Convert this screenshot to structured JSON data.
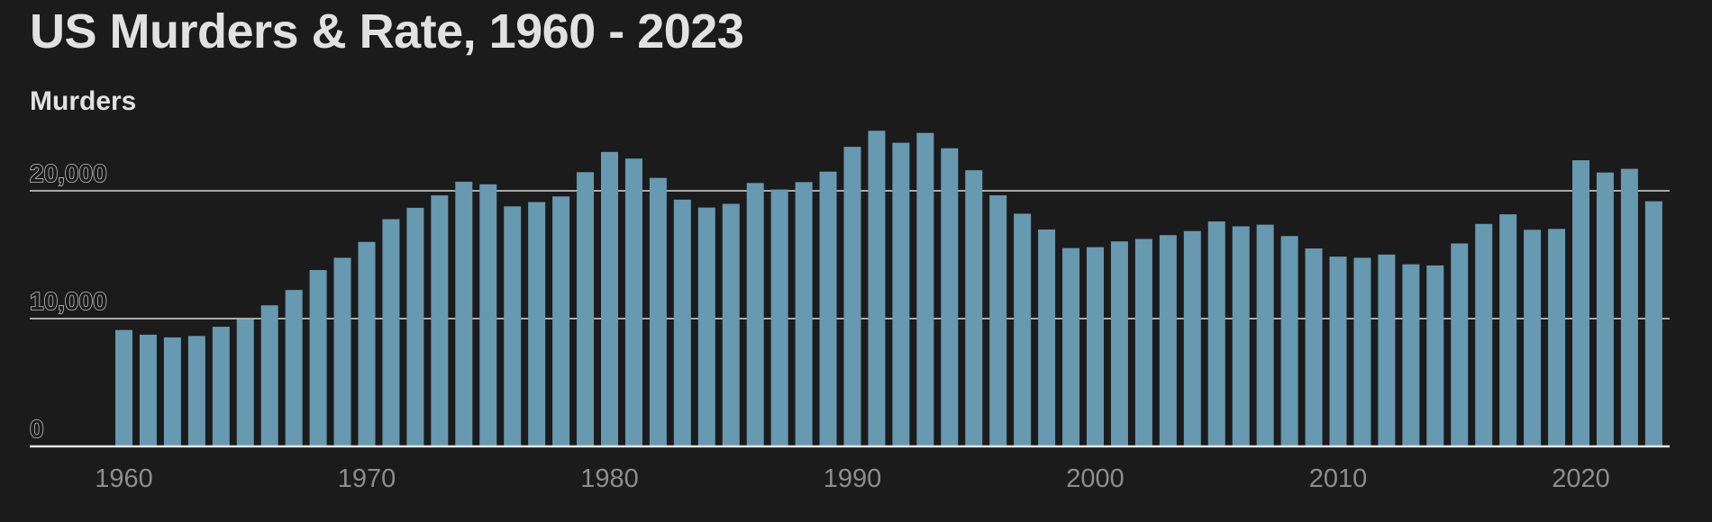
{
  "chart_data": {
    "type": "bar",
    "title": "US Murders & Rate, 1960 - 2023",
    "ylabel": "Murders",
    "xlabel": "",
    "ylim": [
      0,
      25000
    ],
    "y_ticks": [
      0,
      10000,
      20000
    ],
    "y_tick_labels": [
      "0",
      "10,000",
      "20,000"
    ],
    "x_tick_years": [
      1960,
      1970,
      1980,
      1990,
      2000,
      2010,
      2020
    ],
    "x_tick_labels": [
      "1960",
      "1970",
      "1980",
      "1990",
      "2000",
      "2010",
      "2020"
    ],
    "grid": true,
    "bar_color": "#6799b0",
    "categories": [
      1960,
      1961,
      1962,
      1963,
      1964,
      1965,
      1966,
      1967,
      1968,
      1969,
      1970,
      1971,
      1972,
      1973,
      1974,
      1975,
      1976,
      1977,
      1978,
      1979,
      1980,
      1981,
      1982,
      1983,
      1984,
      1985,
      1986,
      1987,
      1988,
      1989,
      1990,
      1991,
      1992,
      1993,
      1994,
      1995,
      1996,
      1997,
      1998,
      1999,
      2000,
      2001,
      2002,
      2003,
      2004,
      2005,
      2006,
      2007,
      2008,
      2009,
      2010,
      2011,
      2012,
      2013,
      2014,
      2015,
      2016,
      2017,
      2018,
      2019,
      2020,
      2021,
      2022,
      2023
    ],
    "series": [
      {
        "values": [
          9110,
          8740,
          8530,
          8640,
          9360,
          9960,
          11040,
          12240,
          13800,
          14760,
          16000,
          17780,
          18670,
          19640,
          20710,
          20510,
          18780,
          19120,
          19560,
          21460,
          23040,
          22520,
          21010,
          19310,
          18690,
          18980,
          20610,
          20100,
          20680,
          21500,
          23440,
          24700,
          23760,
          24530,
          23330,
          21610,
          19650,
          18210,
          16970,
          15520,
          15590,
          16040,
          16230,
          16530,
          16850,
          17600,
          17220,
          17350,
          16460,
          15490,
          14850,
          14760,
          15010,
          14250,
          14160,
          15880,
          17410,
          18160,
          16950,
          17020,
          22390,
          21430,
          21720,
          19180
        ]
      }
    ]
  }
}
